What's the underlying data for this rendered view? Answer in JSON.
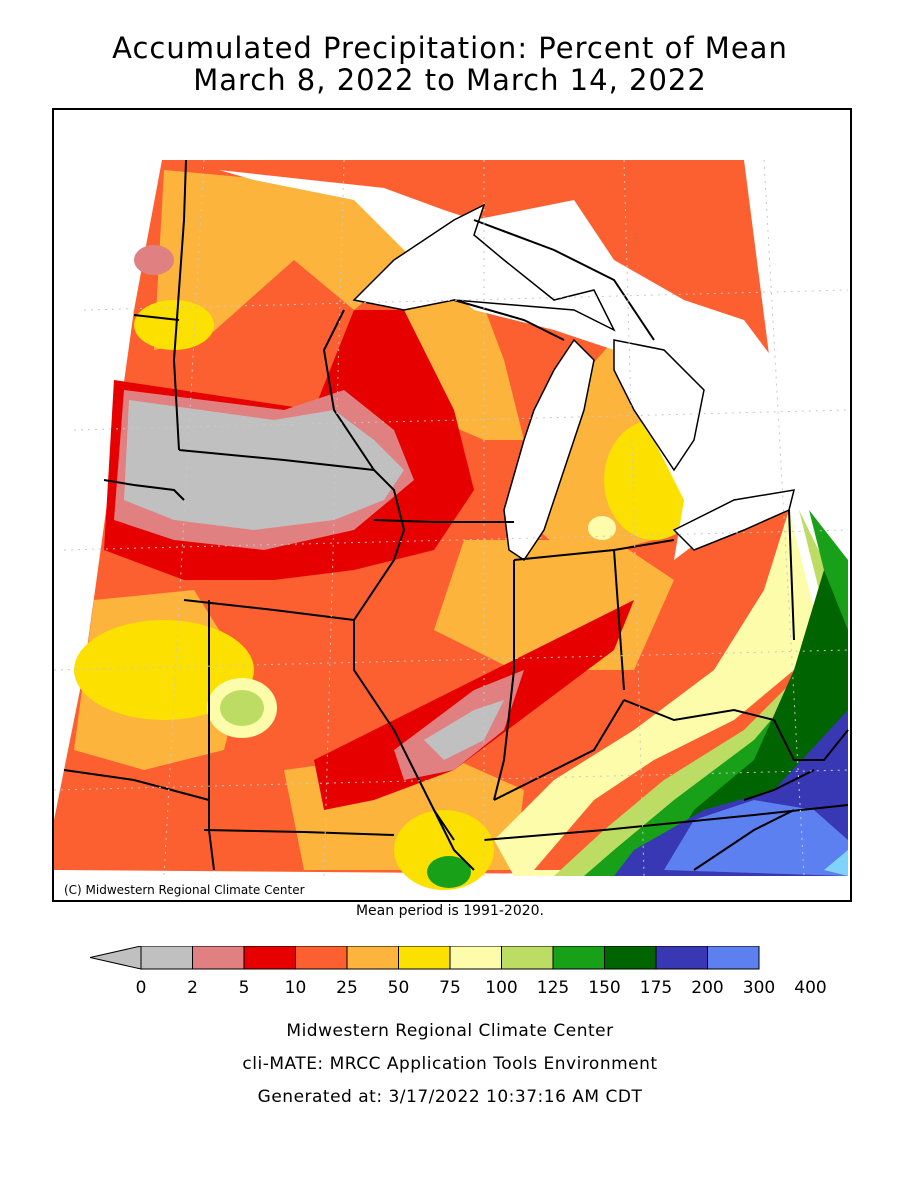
{
  "title_line1": "Accumulated Precipitation: Percent of Mean",
  "title_line2": "March 8, 2022 to March 14, 2022",
  "map": {
    "copyright": "(C) Midwestern Regional Climate Center",
    "water_color": "#ffffff",
    "border_color": "#000000"
  },
  "mean_period": "Mean period is 1991-2020.",
  "legend": {
    "labels": [
      "0",
      "2",
      "5",
      "10",
      "25",
      "50",
      "75",
      "100",
      "125",
      "150",
      "175",
      "200",
      "300",
      "400"
    ],
    "colors": [
      "#c0c0c0",
      "#e08080",
      "#e60000",
      "#fc6030",
      "#fcb43c",
      "#fce000",
      "#fcfcaa",
      "#bcdc64",
      "#18a018",
      "#006400",
      "#3838b4",
      "#5c80f0",
      "#80d4fc"
    ]
  },
  "footer": {
    "line1": "Midwestern Regional Climate Center",
    "line2": "cli-MATE: MRCC Application Tools Environment",
    "line3": "Generated at: 3/17/2022 10:37:16 AM CDT"
  }
}
